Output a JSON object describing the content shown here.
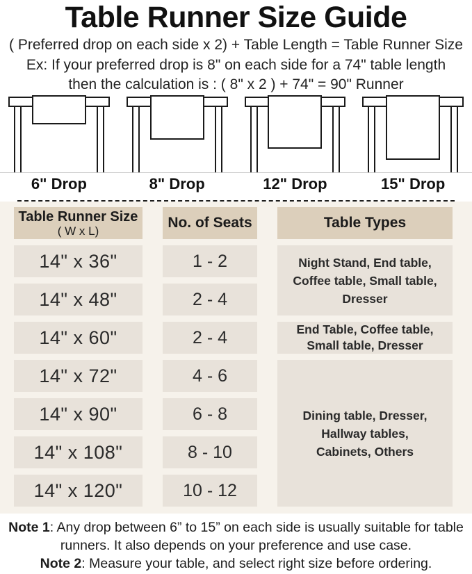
{
  "header": {
    "title": "Table Runner Size Guide",
    "formula": "( Preferred drop on each side x 2) + Table Length = Table Runner Size",
    "example_line1": "Ex: If your preferred drop is 8\" on each side for a 74\" table length",
    "example_line2": "then the calculation is : ( 8\" x 2 ) + 74\" = 90\" Runner"
  },
  "diagrams": [
    {
      "label": "6\" Drop"
    },
    {
      "label": "8\" Drop"
    },
    {
      "label": "12\" Drop"
    },
    {
      "label": "15\" Drop"
    }
  ],
  "size_table": {
    "headers": {
      "size_title": "Table Runner Size",
      "size_sub": "( W x L)",
      "seats": "No. of Seats",
      "types": "Table Types"
    },
    "rows": [
      {
        "size": "14\" x 36\"",
        "seats": "1 - 2"
      },
      {
        "size": "14\" x 48\"",
        "seats": "2 - 4"
      },
      {
        "size": "14\" x 60\"",
        "seats": "2 - 4"
      },
      {
        "size": "14\" x 72\"",
        "seats": "4 - 6"
      },
      {
        "size": "14\" x 90\"",
        "seats": "6 - 8"
      },
      {
        "size": "14\" x 108\"",
        "seats": "8 - 10"
      },
      {
        "size": "14\" x 120\"",
        "seats": "10 - 12"
      }
    ],
    "type_groups": [
      {
        "text": "Night Stand, End table, Coffee table, Small table, Dresser",
        "rows": "14\" x 36\" – 14\" x 48\""
      },
      {
        "text": "End Table, Coffee table, Small table, Dresser",
        "rows": "14\" x 60\""
      },
      {
        "text": "Dining table, Dresser, Hallway tables, Cabinets, Others",
        "rows": "14\" x 72\" – 14\" x 120\""
      }
    ]
  },
  "notes": [
    {
      "label": "Note 1",
      "text": ": Any drop between 6” to 15” on each side is usually suitable for table runners. It also depends on your preference and use case."
    },
    {
      "label": "Note 2",
      "text": ": Measure your table, and select right size before ordering."
    }
  ],
  "colors": {
    "header_cell": "#dccfbb",
    "data_cell": "#e8e2da",
    "table_background": "#f6f2eb",
    "line_color": "#1a1a1a"
  }
}
